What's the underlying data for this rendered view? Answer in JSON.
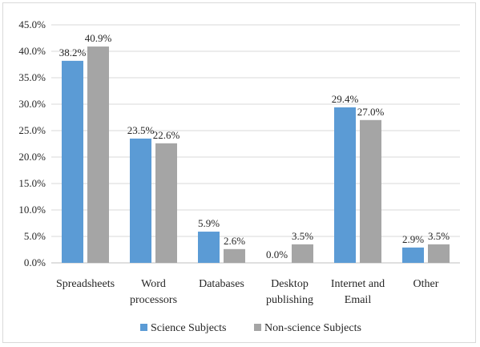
{
  "chart_data": {
    "type": "bar",
    "title": "",
    "xlabel": "",
    "ylabel": "",
    "categories": [
      [
        "Spreadsheets"
      ],
      [
        "Word",
        "processors"
      ],
      [
        "Databases"
      ],
      [
        "Desktop",
        "publishing"
      ],
      [
        "Internet and",
        "Email"
      ],
      [
        "Other"
      ]
    ],
    "series": [
      {
        "name": "Science Subjects",
        "color": "#5b9bd5",
        "values": [
          38.2,
          23.5,
          5.9,
          0.0,
          29.4,
          2.9
        ],
        "labels": [
          "38.2%",
          "23.5%",
          "5.9%",
          "0.0%",
          "29.4%",
          "2.9%"
        ]
      },
      {
        "name": "Non-science Subjects",
        "color": "#a5a5a5",
        "values": [
          40.9,
          22.6,
          2.6,
          3.5,
          27.0,
          3.5
        ],
        "labels": [
          "40.9%",
          "22.6%",
          "2.6%",
          "3.5%",
          "27.0%",
          "3.5%"
        ]
      }
    ],
    "ylim": [
      0,
      45
    ],
    "yticks": [
      0,
      5,
      10,
      15,
      20,
      25,
      30,
      35,
      40,
      45
    ],
    "ytick_labels": [
      "0.0%",
      "5.0%",
      "10.0%",
      "15.0%",
      "20.0%",
      "25.0%",
      "30.0%",
      "35.0%",
      "40.0%",
      "45.0%"
    ],
    "grid": true,
    "legend_position": "bottom"
  }
}
